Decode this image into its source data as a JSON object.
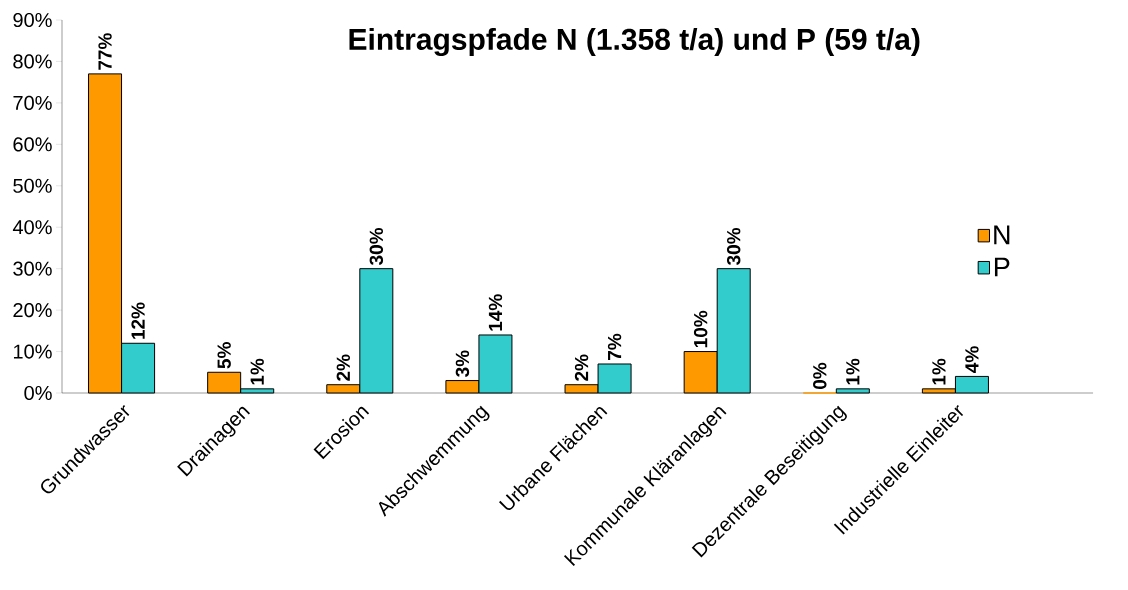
{
  "chart_data": {
    "type": "bar",
    "title": "Eintragspfade N (1.358 t/a) und P (59 t/a)",
    "categories": [
      "Grundwasser",
      "Drainagen",
      "Erosion",
      "Abschwemmung",
      "Urbane Flächen",
      "Kommunale Kläranlagen",
      "Dezentrale Beseitigung",
      "Industrielle Einleiter"
    ],
    "series": [
      {
        "name": "N",
        "color": "#ff9900",
        "values": [
          77,
          5,
          2,
          3,
          2,
          10,
          0,
          1
        ],
        "value_labels": [
          "77%",
          "5%",
          "2%",
          "3%",
          "2%",
          "10%",
          "0%",
          "1%"
        ]
      },
      {
        "name": "P",
        "color": "#33cccc",
        "values": [
          12,
          1,
          30,
          14,
          7,
          30,
          1,
          4
        ],
        "value_labels": [
          "12%",
          "1%",
          "30%",
          "14%",
          "7%",
          "30%",
          "1%",
          "4%"
        ]
      }
    ],
    "ylim": [
      0,
      90
    ],
    "yticks": [
      {
        "value": 0,
        "label": "0%"
      },
      {
        "value": 10,
        "label": "10%"
      },
      {
        "value": 20,
        "label": "20%"
      },
      {
        "value": 30,
        "label": "30%"
      },
      {
        "value": 40,
        "label": "40%"
      },
      {
        "value": 50,
        "label": "50%"
      },
      {
        "value": 60,
        "label": "60%"
      },
      {
        "value": 70,
        "label": "70%"
      },
      {
        "value": 80,
        "label": "80%"
      },
      {
        "value": 90,
        "label": "90%"
      }
    ],
    "legend": "right"
  }
}
